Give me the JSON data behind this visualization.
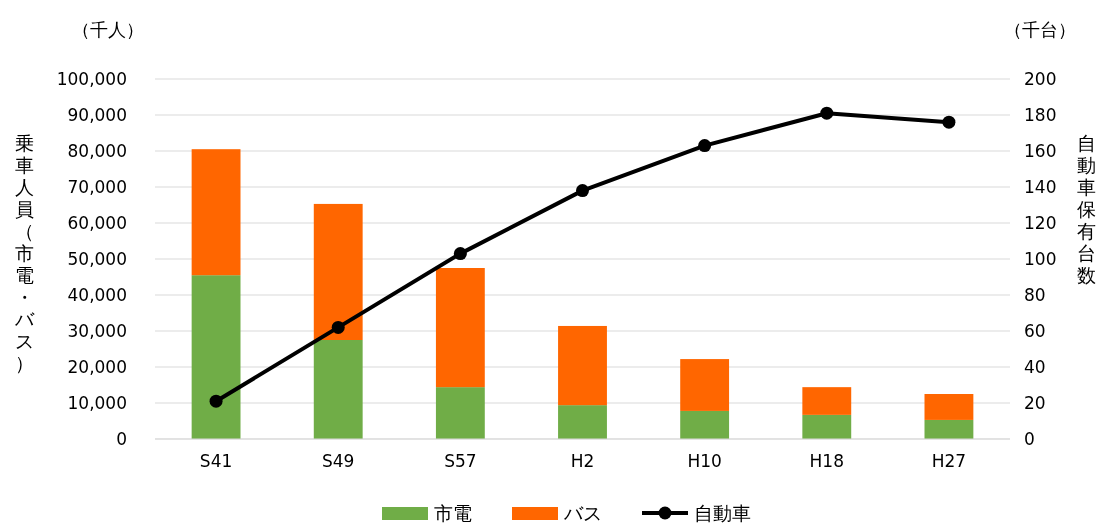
{
  "chart_data": {
    "type": "bar",
    "stacked": true,
    "categories": [
      "S41",
      "S49",
      "S57",
      "H2",
      "H10",
      "H18",
      "H27"
    ],
    "series": [
      {
        "name": "市電",
        "color": "#70ad47",
        "values": [
          45500,
          27500,
          14400,
          9400,
          7800,
          6700,
          5300
        ]
      },
      {
        "name": "バス",
        "color": "#ff6600",
        "values": [
          35000,
          37800,
          33100,
          22000,
          14400,
          7700,
          7200
        ]
      },
      {
        "name": "自動車",
        "type": "line",
        "axis": "y2",
        "color": "#000000",
        "marker": "circle",
        "values": [
          21,
          62,
          103,
          138,
          163,
          181,
          176
        ]
      }
    ],
    "ylim": [
      0,
      100000
    ],
    "yticks": [
      0,
      {
        "value": 10000,
        "label": "10,000"
      },
      {
        "value": 20000,
        "label": "20,000"
      },
      {
        "value": 30000,
        "label": "30,000"
      },
      {
        "value": 40000,
        "label": "40,000"
      },
      {
        "value": 50000,
        "label": "50,000"
      },
      {
        "value": 60000,
        "label": "60,000"
      },
      {
        "value": 70000,
        "label": "70,000"
      },
      {
        "value": 80000,
        "label": "80,000"
      },
      {
        "value": 90000,
        "label": "90,000"
      },
      {
        "value": 100000,
        "label": "100,000"
      }
    ],
    "y2lim": [
      0,
      200
    ],
    "y2ticks": [
      0,
      20,
      40,
      60,
      80,
      100,
      120,
      140,
      160,
      180,
      200
    ],
    "ylabel": "乗車人員（市電・バス）",
    "y2label": "自動車保有台数",
    "annotations": [
      "（千人）",
      "（千台）"
    ],
    "grid": "y",
    "legend": "bottom"
  }
}
